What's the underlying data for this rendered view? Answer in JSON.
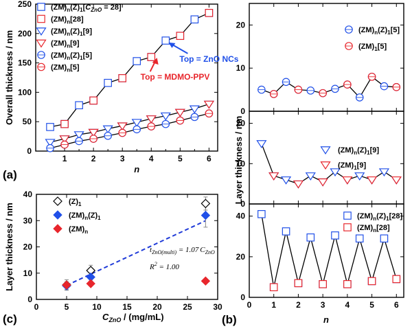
{
  "colors": {
    "blue": "#2050e8",
    "red": "#e8262c",
    "black": "#000000",
    "fit": "#1f3ad8"
  },
  "panels": {
    "a": {
      "label": "(a)"
    },
    "b": {
      "label": "(b)"
    },
    "c": {
      "label": "(c)"
    }
  },
  "chart_data": [
    {
      "id": "a",
      "type": "line",
      "panel_label": "(a)",
      "xlabel": "n",
      "ylabel": "Overall thickness / nm",
      "xlim": [
        0,
        6.3
      ],
      "ylim": [
        0,
        250
      ],
      "xticks": [
        "1",
        "2",
        "3",
        "4",
        "5",
        "6"
      ],
      "yticks": [
        "0",
        "50",
        "100",
        "150",
        "200",
        "250"
      ],
      "series": [
        {
          "name": "(ZM)n(Z)1[CZnO = 28]",
          "legend_html": "(ZM)<tspan font-size='8' dy='3'>n</tspan><tspan dy='-3'>(Z)</tspan><tspan font-size='8' dy='3'>1</tspan><tspan dy='-3'>[</tspan><tspan font-style='italic'>C</tspan><tspan font-size='8' dy='3' font-style='italic'>ZnO</tspan><tspan dy='-3'> = 28]</tspan>",
          "marker": "square",
          "color": "blue",
          "x": [
            0.5,
            1,
            1.5,
            2,
            2.5,
            3,
            3.5,
            4,
            4.5,
            5,
            5.5,
            6
          ],
          "y": [
            41,
            46,
            78,
            86,
            116,
            124,
            153,
            160,
            188,
            196,
            224,
            235
          ]
        },
        {
          "name": "(ZM)n[28]",
          "legend_html": "(ZM)<tspan font-size='8' dy='3'>n</tspan><tspan dy='-3'>[28]</tspan>",
          "marker": "square",
          "color": "red",
          "x": [
            1,
            2,
            3,
            4,
            5,
            6
          ],
          "y": [
            46,
            86,
            124,
            160,
            196,
            235
          ]
        },
        {
          "name": "(ZM)n(Z)1[9]",
          "legend_html": "(ZM)<tspan font-size='8' dy='3'>n</tspan><tspan dy='-3'>(Z)</tspan><tspan font-size='8' dy='3'>1</tspan><tspan dy='-3'>[9]</tspan>",
          "marker": "tri-down",
          "color": "blue",
          "x": [
            0.5,
            1,
            1.5,
            2,
            2.5,
            3,
            3.5,
            4,
            4.5,
            5,
            5.5,
            6
          ],
          "y": [
            15,
            21,
            28,
            32,
            38,
            43,
            49,
            55,
            60,
            66,
            72,
            80
          ]
        },
        {
          "name": "(ZM)n[9]",
          "legend_html": "(ZM)<tspan font-size='8' dy='3'>n</tspan><tspan dy='-3'>[9]</tspan>",
          "marker": "tri-down",
          "color": "red",
          "x": [
            1,
            2,
            3,
            4,
            5,
            6
          ],
          "y": [
            21,
            32,
            43,
            55,
            66,
            80
          ]
        },
        {
          "name": "(ZM)n(Z)1[5]",
          "legend_html": "(ZM)<tspan font-size='8' dy='3'>n</tspan><tspan dy='-3'>(Z)</tspan><tspan font-size='8' dy='3'>1</tspan><tspan dy='-3'>[5]</tspan>",
          "marker": "circle",
          "color": "blue",
          "x": [
            0.5,
            1,
            1.5,
            2,
            2.5,
            3,
            3.5,
            4,
            4.5,
            5,
            5.5,
            6
          ],
          "y": [
            5,
            11,
            17,
            21,
            26,
            31,
            37,
            42,
            46,
            52,
            58,
            64
          ]
        },
        {
          "name": "(ZM)n[5]",
          "legend_html": "(ZM)<tspan font-size='8' dy='3'>n</tspan><tspan dy='-3'>[5]</tspan>",
          "marker": "circle",
          "color": "red",
          "x": [
            1,
            2,
            3,
            4,
            5,
            6
          ],
          "y": [
            11,
            21,
            31,
            42,
            52,
            64
          ]
        }
      ],
      "annotations": [
        {
          "text": "Top = ZnO NCs",
          "color": "blue",
          "x_data": 4.55,
          "y_data": 187
        },
        {
          "text": "Top = MDMO-PPV",
          "color": "red",
          "x_data": 4.2,
          "y_data": 161
        }
      ]
    },
    {
      "id": "b1",
      "type": "line",
      "ylabel": "Layer thickness / nm",
      "xlim": [
        0,
        6.3
      ],
      "ylim": [
        0,
        25
      ],
      "yticks": [
        "0",
        "10",
        "20"
      ],
      "series": [
        {
          "name": "(ZM)n(Z)1[5]",
          "legend_html": "(ZM)<tspan font-size='8' dy='3'>n</tspan><tspan dy='-3'>(Z)</tspan><tspan font-size='8' dy='3'>1</tspan><tspan dy='-3'>[5]</tspan>",
          "marker": "circle",
          "color": "blue",
          "x": [
            0.5,
            1,
            1.5,
            2,
            2.5,
            3,
            3.5,
            4,
            4.5,
            5,
            5.5,
            6
          ],
          "y": [
            5,
            4,
            6.8,
            5,
            4.8,
            4.2,
            5.2,
            6.2,
            3.2,
            8,
            5.8,
            5.6
          ]
        },
        {
          "name": "(ZM)1[5]",
          "legend_html": "(ZM)<tspan font-size='8' dy='3'>1</tspan><tspan dy='-3'>[5]</tspan>",
          "marker": "circle",
          "color": "red",
          "x": [
            1,
            2,
            3,
            4,
            5,
            6
          ],
          "y": [
            4,
            5,
            4.2,
            6.2,
            8,
            5.6
          ]
        }
      ]
    },
    {
      "id": "b2",
      "type": "line",
      "xlim": [
        0,
        6.3
      ],
      "ylim": [
        0,
        23
      ],
      "yticks": [
        "0",
        "10",
        "20"
      ],
      "series": [
        {
          "name": "(ZM)n(Z)1[9]",
          "legend_html": "(ZM)<tspan font-size='8' dy='3'>n</tspan><tspan dy='-3'>(Z)</tspan><tspan font-size='8' dy='3'>1</tspan><tspan dy='-3'>[9]</tspan>",
          "marker": "tri-down",
          "color": "blue",
          "x": [
            0.5,
            1,
            1.5,
            2,
            2.5,
            3,
            3.5,
            4,
            4.5,
            5,
            5.5,
            6
          ],
          "y": [
            15,
            7,
            6,
            5,
            7,
            5.5,
            8,
            6,
            7,
            6,
            8,
            6
          ]
        },
        {
          "name": "(ZM)1[9]",
          "legend_html": "(ZM)<tspan font-size='8' dy='3'>1</tspan><tspan dy='-3'>[9]</tspan>",
          "marker": "tri-down",
          "color": "red",
          "x": [
            1,
            2,
            3,
            4,
            5,
            6
          ],
          "y": [
            7,
            5,
            5.5,
            6,
            6,
            6
          ]
        }
      ]
    },
    {
      "id": "b3",
      "type": "line",
      "xlabel": "n",
      "xlim": [
        0,
        6.3
      ],
      "ylim": [
        0,
        46
      ],
      "xticks": [
        "0",
        "1",
        "2",
        "3",
        "4",
        "5",
        "6"
      ],
      "yticks": [
        "0",
        "20",
        "40"
      ],
      "series": [
        {
          "name": "(ZM)n(Z)1[28]",
          "legend_html": "(ZM)<tspan font-size='8' dy='3'>n</tspan><tspan dy='-3'>(Z)</tspan><tspan font-size='8' dy='3'>1</tspan><tspan dy='-3'>[28]</tspan>",
          "marker": "square",
          "color": "blue",
          "x": [
            0.5,
            1,
            1.5,
            2,
            2.5,
            3,
            3.5,
            4,
            4.5,
            5,
            5.5,
            6
          ],
          "y": [
            41,
            5,
            32.5,
            7,
            29.5,
            6.5,
            30.5,
            6.5,
            29,
            8,
            29,
            9
          ]
        },
        {
          "name": "(ZM)n[28]",
          "legend_html": "(ZM)<tspan font-size='8' dy='3'>n</tspan><tspan dy='-3'>[28]</tspan>",
          "marker": "square",
          "color": "red",
          "x": [
            1,
            2,
            3,
            4,
            5,
            6
          ],
          "y": [
            5,
            7,
            6.5,
            6.5,
            8,
            9
          ]
        }
      ]
    },
    {
      "id": "c",
      "type": "scatter",
      "panel_label": "(c)",
      "xlabel": "CZnO / (mg/mL)",
      "ylabel": "Layer thickness / nm",
      "xlim": [
        0,
        30
      ],
      "ylim": [
        0,
        40
      ],
      "xticks": [
        "0",
        "5",
        "10",
        "15",
        "20",
        "25",
        "30"
      ],
      "yticks": [
        "0",
        "10",
        "20",
        "30",
        "40"
      ],
      "series": [
        {
          "name": "(Z)1",
          "legend_html": "(Z)<tspan font-size='8' dy='3'>1</tspan>",
          "marker": "diamond-open",
          "color": "black",
          "x": [
            5,
            9,
            28
          ],
          "y": [
            5.5,
            11,
            36.5
          ],
          "err": [
            2,
            2,
            2.5
          ]
        },
        {
          "name": "(ZM)n(Z)1",
          "legend_html": "(ZM)<tspan font-size='8' dy='3'>n</tspan><tspan dy='-3'>(Z)</tspan><tspan font-size='8' dy='3'>1</tspan>",
          "marker": "diamond-filled",
          "color": "blue",
          "x": [
            5,
            9,
            28
          ],
          "y": [
            5.2,
            8.5,
            32
          ],
          "err": [
            1.5,
            1.5,
            4.5
          ]
        },
        {
          "name": "(ZM)n",
          "legend_html": "(ZM)<tspan font-size='8' dy='3'>n</tspan>",
          "marker": "diamond-filled",
          "color": "red",
          "x": [
            5,
            9,
            28
          ],
          "y": [
            5.5,
            6,
            7
          ],
          "err": [
            0,
            0,
            0
          ]
        }
      ],
      "fit": {
        "slope": 1.07,
        "x": [
          5,
          28
        ],
        "color": "fit"
      },
      "equations": [
        "t_ZnO(multi) = 1.07 C_ZnO",
        "R^2 = 1.00"
      ]
    }
  ]
}
